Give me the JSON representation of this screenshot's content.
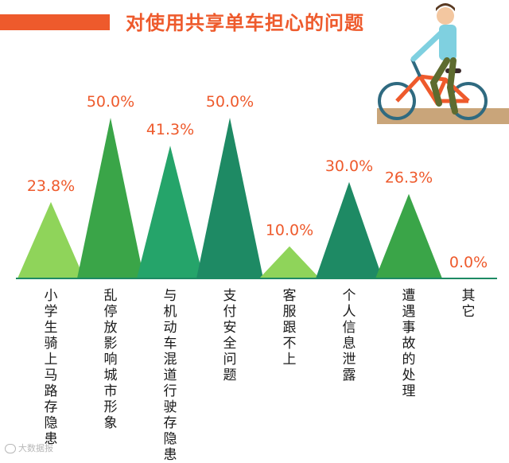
{
  "title": "对使用共享单车担心的问题",
  "watermark": "大数据报",
  "colors": {
    "accent": "#ee5a2c",
    "light_green": "#8fd45a",
    "mid_green": "#3aa548",
    "teal_green": "#25a46a",
    "dark_teal": "#1e8a64",
    "baseline": "#1e8a64"
  },
  "illustration": "cyclist-riding-bicycle",
  "chart_data": {
    "type": "bar",
    "categories": [
      "小学生骑上马路存隐患",
      "乱停放影响城市形象",
      "与机动车混道行驶存隐患",
      "支付安全问题",
      "客服跟不上",
      "个人信息泄露",
      "遭遇事故的处理",
      "其它"
    ],
    "values": [
      23.8,
      50.0,
      41.3,
      50.0,
      10.0,
      30.0,
      26.3,
      0.0
    ],
    "value_labels": [
      "23.8%",
      "50.0%",
      "41.3%",
      "50.0%",
      "10.0%",
      "30.0%",
      "26.3%",
      "0.0%"
    ],
    "colors": [
      "#8fd45a",
      "#3aa548",
      "#25a46a",
      "#1e8a64",
      "#8fd45a",
      "#1e8a64",
      "#3aa548",
      "#1e8a64"
    ],
    "ylim": [
      0,
      50
    ]
  }
}
